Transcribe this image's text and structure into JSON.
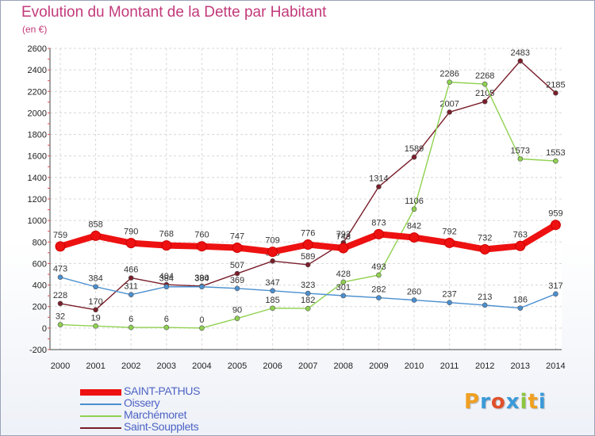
{
  "title": "Evolution du Montant de la Dette par Habitant",
  "unit": "(en €)",
  "logo": {
    "letters": [
      "P",
      "r",
      "o",
      "x",
      "i",
      "t",
      "i"
    ],
    "colors": [
      "#f0a020",
      "#3a9ad9",
      "#e0502a",
      "#3a9ad9",
      "#8cc63e",
      "#f0a020",
      "#3a9ad9"
    ]
  },
  "chart_data": {
    "type": "line",
    "x": [
      "2000",
      "2001",
      "2002",
      "2003",
      "2004",
      "2005",
      "2006",
      "2007",
      "2008",
      "2009",
      "2010",
      "2011",
      "2012",
      "2013",
      "2014"
    ],
    "ylim": [
      -200,
      2600
    ],
    "yticks": [
      "-200",
      "0",
      "200",
      "400",
      "600",
      "800",
      "1000",
      "1200",
      "1400",
      "1600",
      "1800",
      "2000",
      "2200",
      "2400",
      "2600"
    ],
    "grid": true,
    "legend_position": "bottom-left",
    "series": [
      {
        "name": "Saint-Soupplets",
        "color": "#7a1e2a",
        "values": [
          228,
          170,
          466,
          404,
          390,
          507,
          623,
          589,
          793,
          1314,
          1589,
          2007,
          2105,
          2483,
          2185
        ],
        "labels": [
          "228",
          "170",
          "466",
          "404",
          "390",
          "507",
          "623",
          "589",
          "793",
          "1314",
          "1589",
          "2007",
          "2105",
          "2483",
          "2185"
        ]
      },
      {
        "name": "Marchémoret",
        "color": "#8fd14f",
        "values": [
          32,
          19,
          6,
          6,
          0,
          90,
          185,
          182,
          428,
          493,
          1106,
          2286,
          2268,
          1573,
          1553
        ],
        "labels": [
          "32",
          "19",
          "6",
          "6",
          "0",
          "90",
          "185",
          "182",
          "428",
          "493",
          "1106",
          "2286",
          "2268",
          "1573",
          "1553"
        ]
      },
      {
        "name": "Oissery",
        "color": "#4a8fd0",
        "values": [
          473,
          384,
          311,
          384,
          384,
          369,
          347,
          323,
          301,
          282,
          260,
          237,
          213,
          186,
          317
        ],
        "labels": [
          "473",
          "384",
          "311",
          "384",
          "384",
          "369",
          "347",
          "323",
          "301",
          "282",
          "260",
          "237",
          "213",
          "186",
          "317"
        ]
      },
      {
        "name": "SAINT-PATHUS",
        "color": "#ee1111",
        "values": [
          759,
          858,
          790,
          768,
          760,
          747,
          709,
          776,
          743,
          873,
          842,
          792,
          732,
          763,
          959
        ],
        "labels": [
          "759",
          "858",
          "790",
          "768",
          "760",
          "747",
          "709",
          "776",
          "743",
          "873",
          "842",
          "792",
          "732",
          "763",
          "959"
        ]
      }
    ],
    "legend": [
      "SAINT-PATHUS",
      "Oissery",
      "Marchémoret",
      "Saint-Soupplets"
    ]
  }
}
